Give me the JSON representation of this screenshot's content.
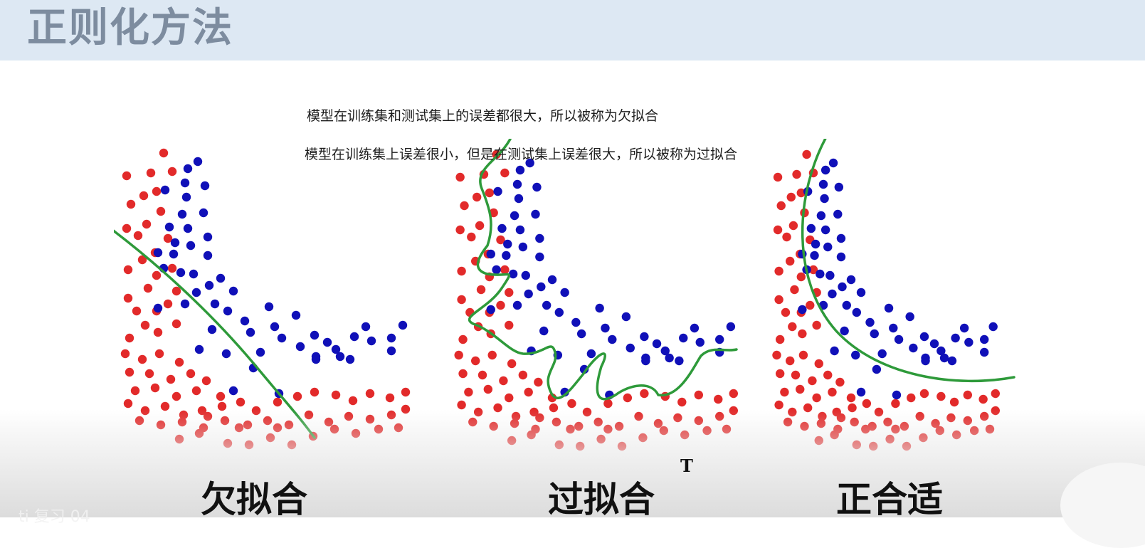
{
  "slide": {
    "title": "正则化方法",
    "desc_underfit": "模型在训练集和测试集上的误差都很大，所以被称为欠拟合",
    "desc_overfit": "模型在训练集上误差很小，但是在测试集上误差很大，所以被称为过拟合"
  },
  "panels": {
    "underfit": "欠拟合",
    "overfit": "过拟合",
    "goodfit": "正合适"
  },
  "overlay": {
    "cursor_text": "T",
    "bottom_left_text": "ti   复习 04"
  },
  "colors": {
    "red": "#e22a2a",
    "blue": "#1010b8",
    "curve": "#2e9a3a"
  }
}
